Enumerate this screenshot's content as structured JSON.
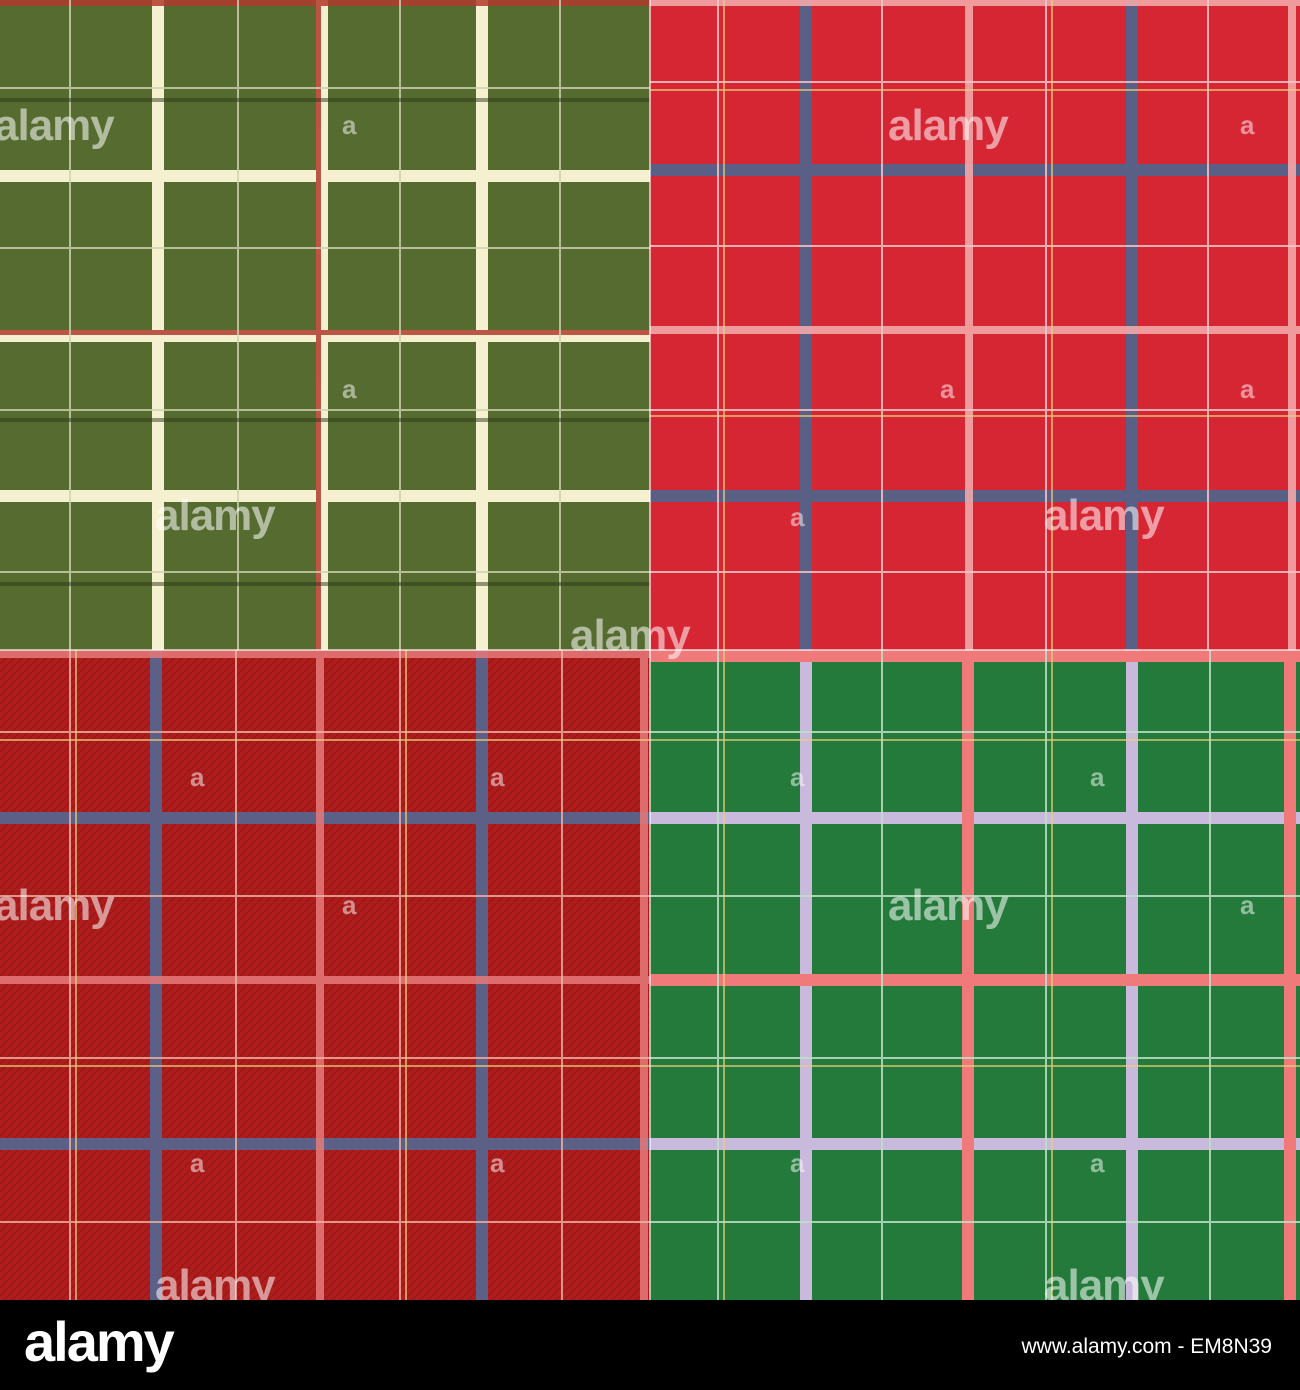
{
  "image": {
    "description_kind": "stock-image",
    "panels": [
      {
        "id": "green-cream",
        "background": "#556b2f",
        "line_colors": [
          "#f5f0d0",
          "#b03a2e",
          "#2d3b1a"
        ],
        "accent_color": "#cfd3b0"
      },
      {
        "id": "bright-red",
        "background": "#d72633",
        "line_colors": [
          "#5a5f86",
          "#f2a8a8",
          "#e8cf7a"
        ],
        "accent_color": "#f5c6c6"
      },
      {
        "id": "dark-red",
        "background": "#b01c1c",
        "line_colors": [
          "#5c5f86",
          "#f0b4a4",
          "#e8d07a"
        ],
        "accent_color": "#e87a7a"
      },
      {
        "id": "green-pink",
        "background": "#237a3a",
        "line_colors": [
          "#c9b9dc",
          "#f07a7a",
          "#e8d07a"
        ],
        "accent_color": "#bfe0c6"
      }
    ]
  },
  "watermark": {
    "text": "alamy",
    "letter": "a"
  },
  "footer": {
    "logo": "alamy",
    "caption": "www.alamy.com - EM8N39",
    "background": "#000000",
    "text_color": "#ffffff"
  }
}
